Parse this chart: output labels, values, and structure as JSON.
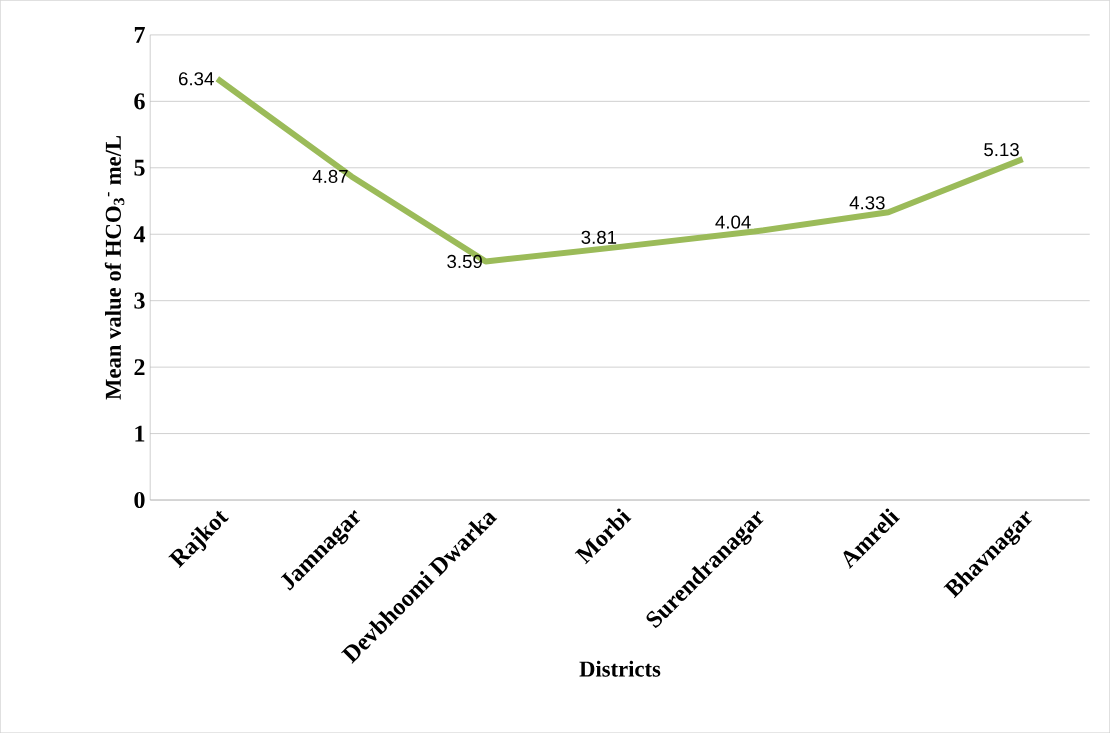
{
  "chart_data": {
    "type": "line",
    "xlabel": "Districts",
    "ylabel": "Mean value of HCO$_{3}$$^{-}$ me/L",
    "categories": [
      "Rajkot",
      "Jamnagar",
      "Devbhoomi Dwarka",
      "Morbi",
      "Surendranagar",
      "Amreli",
      "Bhavnagar"
    ],
    "values": [
      6.34,
      4.87,
      3.59,
      3.81,
      4.04,
      4.33,
      5.13
    ],
    "color": "#9bbb59",
    "ylim": [
      0,
      7
    ],
    "yticks": [
      0,
      1,
      2,
      3,
      4,
      5,
      6,
      7
    ],
    "grid": "y",
    "data_labels": true,
    "marker": "none",
    "line_style": "solid"
  }
}
